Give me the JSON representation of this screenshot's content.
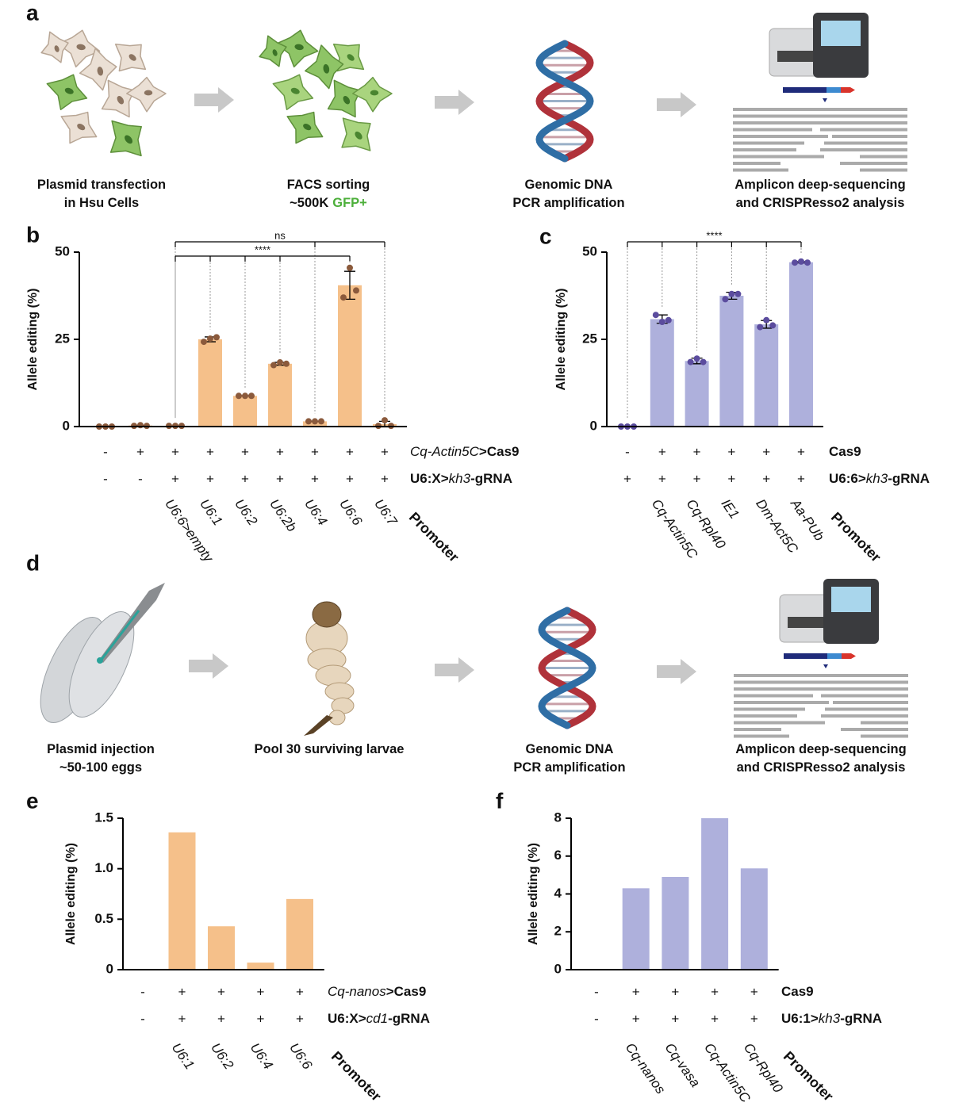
{
  "workflow_a": {
    "panel": "a",
    "steps": [
      {
        "lines": [
          "Plasmid transfection",
          "in Hsu Cells"
        ]
      },
      {
        "lines": [
          "FACS sorting",
          "~500K"
        ],
        "highlight": "GFP+"
      },
      {
        "lines": [
          "Genomic DNA",
          "PCR amplification"
        ]
      },
      {
        "lines": [
          "Amplicon deep-sequencing",
          "and CRISPResso2 analysis"
        ]
      }
    ]
  },
  "workflow_d": {
    "panel": "d",
    "steps": [
      {
        "lines": [
          "Plasmid injection",
          "~50-100 eggs"
        ]
      },
      {
        "lines": [
          "Pool 30 surviving larvae"
        ]
      },
      {
        "lines": [
          "Genomic DNA",
          "PCR amplification"
        ]
      },
      {
        "lines": [
          "Amplicon deep-sequencing",
          "and CRISPResso2 analysis"
        ]
      }
    ]
  },
  "chart_data": [
    {
      "type": "bar",
      "panel": "b",
      "y_label": "Allele editing (%)",
      "color": "#f5c08a",
      "point_color": "#8b5a3c",
      "ylim": [
        0,
        50
      ],
      "yticks": [
        0,
        25,
        50
      ],
      "categories": [
        null,
        null,
        "U6:6>empty",
        "U6:1",
        "U6:2",
        "U6:2b",
        "U6:4",
        "U6:6",
        "U6:7"
      ],
      "values": [
        0,
        0.3,
        0.2,
        25,
        8.8,
        18,
        1.5,
        40.5,
        0.7
      ],
      "errors": [
        0,
        0,
        0,
        0.7,
        0,
        0.4,
        0,
        4,
        0.8
      ],
      "points": [
        [
          0,
          0,
          0
        ],
        [
          0.2,
          0.4,
          0.2
        ],
        [
          0.2,
          0.2,
          0.2
        ],
        [
          24.3,
          25.2,
          25.6
        ],
        [
          8.8,
          8.8,
          8.8
        ],
        [
          17.6,
          18.4,
          18.0
        ],
        [
          1.5,
          1.5,
          1.5
        ],
        [
          37,
          45.5,
          39
        ],
        [
          0.2,
          1.8,
          0.2
        ]
      ],
      "rows": [
        {
          "label": [
            "Cq-Actin5C",
            ">Cas9"
          ],
          "label_style": [
            "italic",
            "bold"
          ],
          "marks": [
            "-",
            "+",
            "+",
            "+",
            "+",
            "+",
            "+",
            "+",
            "+"
          ]
        },
        {
          "label": [
            "U6:X>",
            "kh3",
            "-gRNA"
          ],
          "label_style": [
            "bold",
            "italic",
            "bold"
          ],
          "marks": [
            "-",
            "-",
            "+",
            "+",
            "+",
            "+",
            "+",
            "+",
            "+"
          ]
        }
      ],
      "promoter_title": "Promoter",
      "brackets": [
        {
          "label": "ns",
          "from": 2,
          "to": 8,
          "drops": [
            6,
            8
          ]
        },
        {
          "label": "****",
          "from": 2,
          "to": 7,
          "drops": [
            3,
            4,
            5,
            7
          ]
        }
      ]
    },
    {
      "type": "bar",
      "panel": "c",
      "y_label": "Allele editing (%)",
      "color": "#aeb0dc",
      "point_color": "#5b4c9e",
      "ylim": [
        0,
        50
      ],
      "yticks": [
        0,
        25,
        50
      ],
      "categories": [
        null,
        "Cq-Actin5C",
        "Cq-Rpl40",
        "IE1",
        "Dm-Act5C",
        "Aa-PUb"
      ],
      "values": [
        0,
        30.8,
        18.8,
        37.5,
        29.3,
        47.1
      ],
      "errors": [
        0,
        1.2,
        0.8,
        1,
        1.1,
        0.2
      ],
      "points": [
        [
          0,
          0,
          0
        ],
        [
          32,
          30,
          30.5
        ],
        [
          18.5,
          19.5,
          18.5
        ],
        [
          36.5,
          38,
          38
        ],
        [
          28.5,
          30.5,
          29
        ],
        [
          47,
          47.3,
          47
        ]
      ],
      "rows": [
        {
          "label": [
            "Cas9"
          ],
          "label_style": [
            "bold"
          ],
          "marks": [
            "-",
            "+",
            "+",
            "+",
            "+",
            "+"
          ]
        },
        {
          "label": [
            "U6:6>",
            "kh3",
            "-gRNA"
          ],
          "label_style": [
            "bold",
            "italic",
            "bold"
          ],
          "marks": [
            "+",
            "+",
            "+",
            "+",
            "+",
            "+"
          ]
        }
      ],
      "promoter_title": "Promoter",
      "brackets": [
        {
          "label": "****",
          "from": 0,
          "to": 5,
          "drops": [
            1,
            2,
            3,
            4,
            5
          ]
        }
      ]
    },
    {
      "type": "bar",
      "panel": "e",
      "y_label": "Allele editing (%)",
      "color": "#f5c08a",
      "ylim": [
        0,
        1.5
      ],
      "yticks": [
        0,
        0.5,
        {
          "value": 1,
          "label": "1.0"
        },
        1.5
      ],
      "categories": [
        null,
        "U6:1",
        "U6:2",
        "U6:4",
        "U6:6"
      ],
      "values": [
        0,
        1.36,
        0.43,
        0.07,
        0.7
      ],
      "rows": [
        {
          "label": [
            "Cq-nanos",
            ">Cas9"
          ],
          "label_style": [
            "italic",
            "bold"
          ],
          "marks": [
            "-",
            "+",
            "+",
            "+",
            "+"
          ]
        },
        {
          "label": [
            "U6:X>",
            "cd1",
            "-gRNA"
          ],
          "label_style": [
            "bold",
            "italic",
            "bold"
          ],
          "marks": [
            "-",
            "+",
            "+",
            "+",
            "+"
          ]
        }
      ],
      "promoter_title": "Promoter"
    },
    {
      "type": "bar",
      "panel": "f",
      "y_label": "Allele editing (%)",
      "color": "#aeb0dc",
      "ylim": [
        0,
        8
      ],
      "yticks": [
        0,
        2,
        4,
        6,
        8
      ],
      "categories": [
        null,
        "Cq-nanos",
        "Cq-vasa",
        "Cq-Actin5C",
        "Cq-Rpl40"
      ],
      "values": [
        0,
        4.3,
        4.9,
        8,
        5.35
      ],
      "rows": [
        {
          "label": [
            "Cas9"
          ],
          "label_style": [
            "bold"
          ],
          "marks": [
            "-",
            "+",
            "+",
            "+",
            "+"
          ]
        },
        {
          "label": [
            "U6:1>",
            "kh3",
            "-gRNA"
          ],
          "label_style": [
            "bold",
            "italic",
            "bold"
          ],
          "marks": [
            "-",
            "+",
            "+",
            "+",
            "+"
          ]
        }
      ],
      "promoter_title": "Promoter"
    }
  ]
}
